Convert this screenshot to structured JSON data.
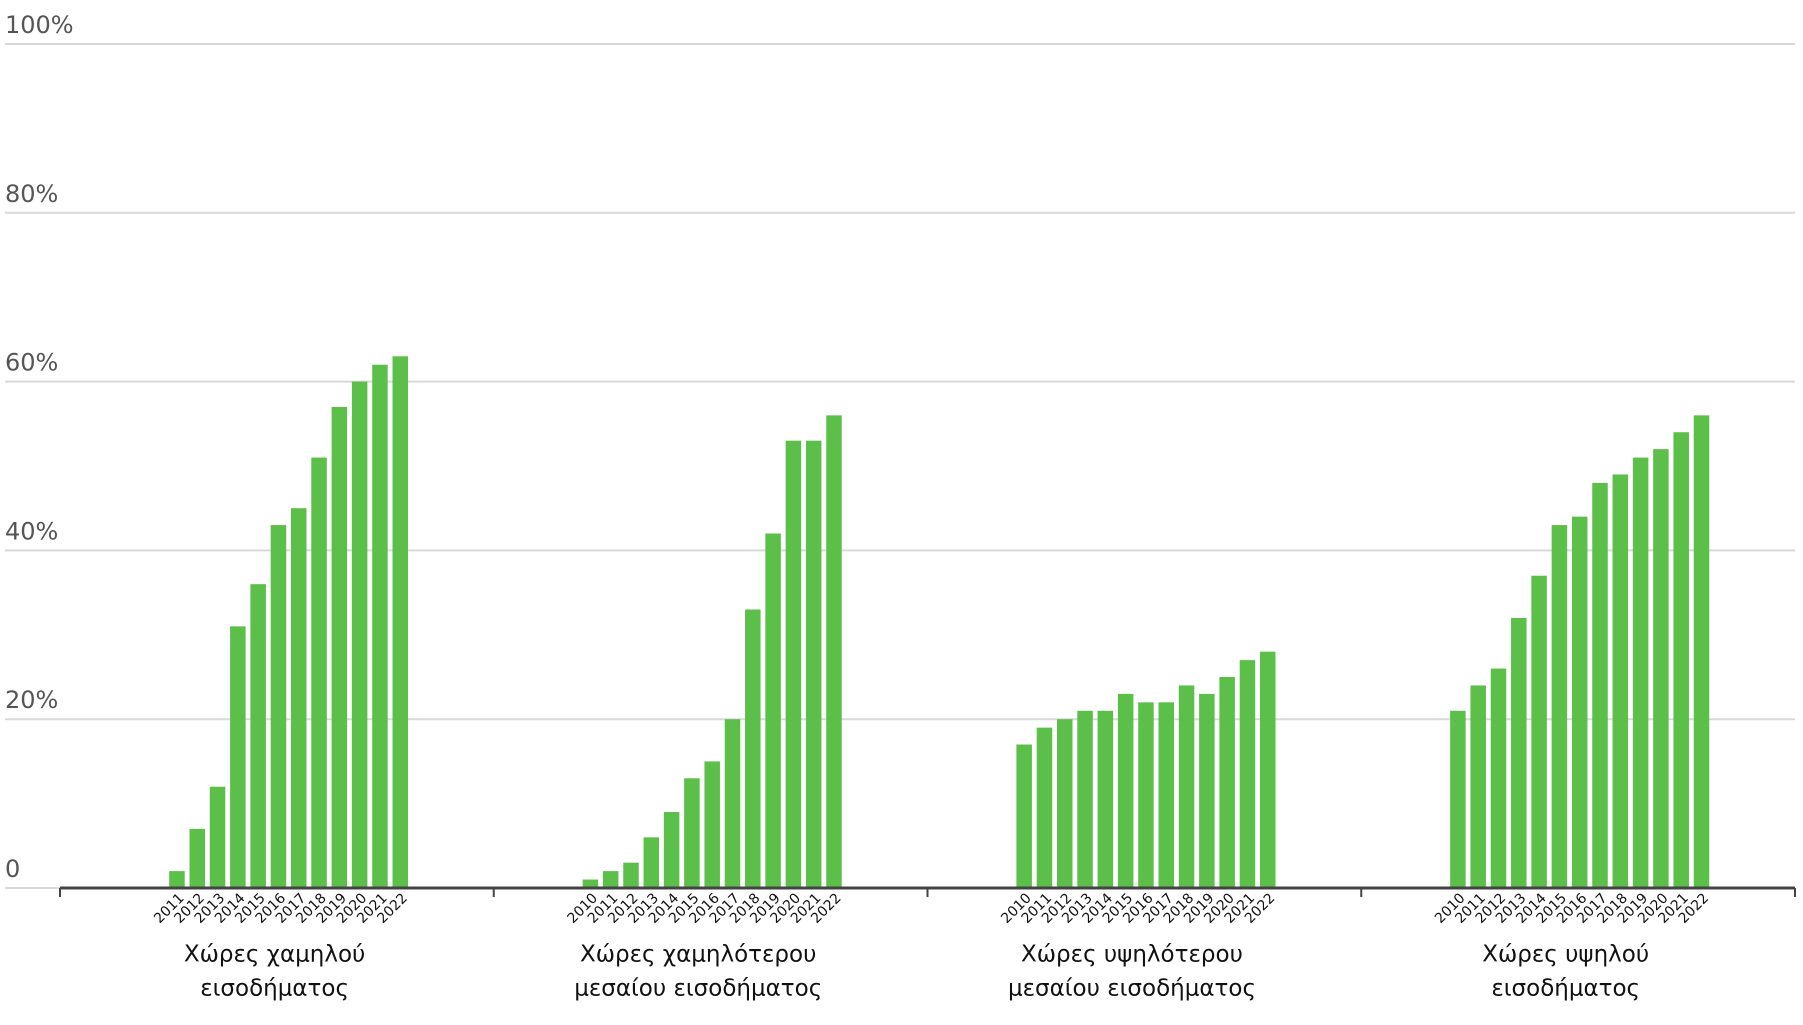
{
  "chart_data": {
    "type": "bar",
    "color": "#5cbf4a",
    "grid": true,
    "ylim": [
      0,
      100
    ],
    "yticks": [
      0,
      {
        "value": 20,
        "label": "20%"
      },
      {
        "value": 40,
        "label": "40%"
      },
      {
        "value": 60,
        "label": "60%"
      },
      {
        "value": 80,
        "label": "80%"
      },
      {
        "value": 100,
        "label": "100%"
      }
    ],
    "groups": [
      {
        "label": [
          "Χώρες χαμηλού",
          "εισοδήματος"
        ],
        "categories": [
          "2011",
          "2012",
          "2013",
          "2014",
          "2015",
          "2016",
          "2017",
          "2018",
          "2019",
          "2020",
          "2021",
          "2022"
        ],
        "values": [
          2,
          7,
          12,
          31,
          36,
          43,
          45,
          51,
          57,
          60,
          62,
          63
        ]
      },
      {
        "label": [
          "Χώρες χαμηλότερου",
          "μεσαίου εισοδήματος"
        ],
        "categories": [
          "2010",
          "2011",
          "2012",
          "2013",
          "2014",
          "2015",
          "2016",
          "2017",
          "2018",
          "2019",
          "2020",
          "2021",
          "2022"
        ],
        "values": [
          1,
          2,
          3,
          6,
          9,
          13,
          15,
          20,
          33,
          42,
          53,
          53,
          56
        ]
      },
      {
        "label": [
          "Χώρες υψηλότερου",
          "μεσαίου εισοδήματος"
        ],
        "categories": [
          "2010",
          "2011",
          "2012",
          "2013",
          "2014",
          "2015",
          "2016",
          "2017",
          "2018",
          "2019",
          "2020",
          "2021",
          "2022"
        ],
        "values": [
          17,
          19,
          20,
          21,
          21,
          23,
          22,
          22,
          24,
          23,
          25,
          27,
          28
        ]
      },
      {
        "label": [
          "Χώρες υψηλού",
          "εισοδήματος"
        ],
        "categories": [
          "2010",
          "2011",
          "2012",
          "2013",
          "2014",
          "2015",
          "2016",
          "2017",
          "2018",
          "2019",
          "2020",
          "2021",
          "2022"
        ],
        "values": [
          21,
          24,
          26,
          32,
          37,
          43,
          44,
          48,
          49,
          51,
          52,
          54,
          56
        ]
      }
    ]
  }
}
